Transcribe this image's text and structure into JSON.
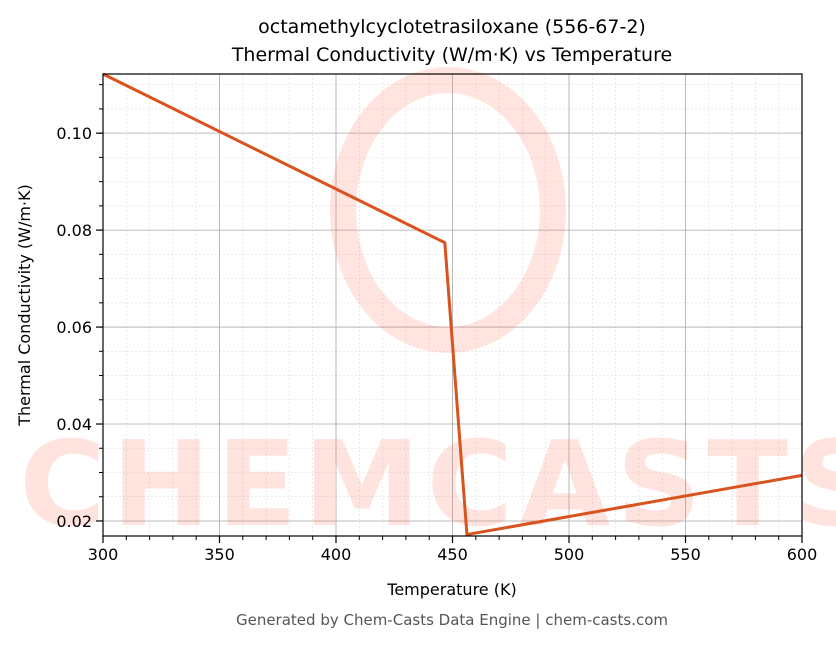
{
  "chart_data": {
    "type": "line",
    "title_line1": "octamethylcyclotetrasiloxane (556-67-2)",
    "title_line2": "Thermal Conductivity (W/m·K) vs Temperature",
    "xlabel": "Temperature (K)",
    "ylabel": "Thermal Conductivity (W/m·K)",
    "xlim": [
      300,
      600
    ],
    "ylim": [
      0.0169,
      0.1122
    ],
    "xticks": [
      300,
      350,
      400,
      450,
      500,
      550,
      600
    ],
    "xtick_labels": [
      "300",
      "350",
      "400",
      "450",
      "500",
      "550",
      "600"
    ],
    "yticks": [
      0.02,
      0.04,
      0.06,
      0.08,
      0.1
    ],
    "ytick_labels": [
      "0.02",
      "0.04",
      "0.06",
      "0.08",
      "0.10"
    ],
    "grid": true,
    "series": [
      {
        "color": "#d9531e",
        "x": [
          300,
          446.7,
          456.2,
          600
        ],
        "y": [
          0.1122,
          0.0774,
          0.0172,
          0.0294
        ]
      }
    ]
  },
  "watermark": "CHEMCASTS",
  "footer": "Generated by Chem-Casts Data Engine | chem-casts.com"
}
